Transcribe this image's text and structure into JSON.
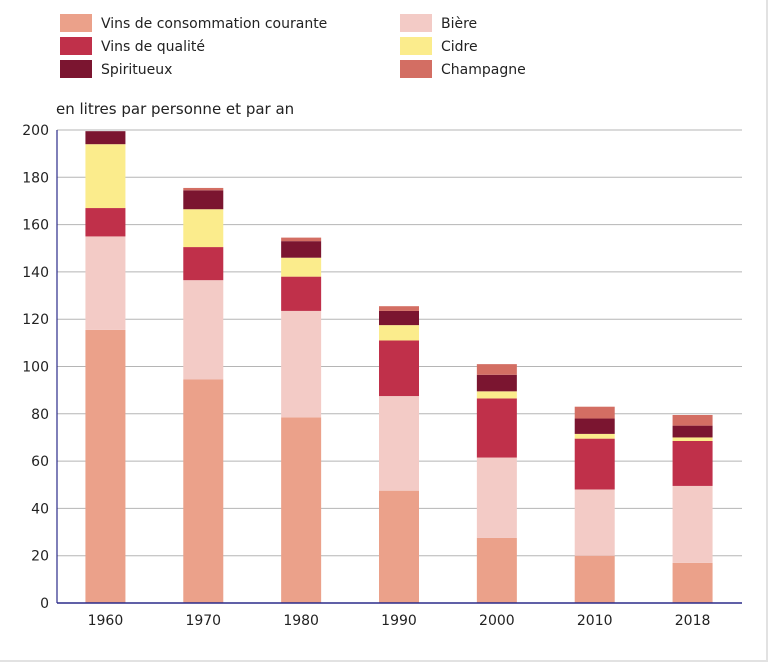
{
  "chart_data": {
    "type": "bar",
    "stacked": true,
    "ylabel": "en litres par personne et par an",
    "ylim": [
      0,
      200
    ],
    "yticks": [
      "0",
      "20",
      "40",
      "60",
      "80",
      "100",
      "120",
      "140",
      "160",
      "180",
      "200"
    ],
    "grid": true,
    "legend_position": "top",
    "categories": [
      "1960",
      "1970",
      "1980",
      "1990",
      "2000",
      "2010",
      "2018"
    ],
    "series": [
      {
        "name": "Vins de consommation courante",
        "color": "#eba18a",
        "values": [
          115.5,
          94.5,
          78.5,
          47.5,
          27.5,
          20,
          17
        ]
      },
      {
        "name": "Bière",
        "color": "#f3cbc6",
        "values": [
          39.5,
          42,
          45,
          40,
          34,
          28,
          32.5
        ]
      },
      {
        "name": "Vins de qualité",
        "color": "#c0304a",
        "values": [
          12,
          14,
          14.5,
          23.5,
          25,
          21.5,
          19
        ]
      },
      {
        "name": "Cidre",
        "color": "#fbec8c",
        "values": [
          27,
          16,
          8,
          6.5,
          3,
          2,
          1.5
        ]
      },
      {
        "name": "Spiritueux",
        "color": "#7b1530",
        "values": [
          5.5,
          8,
          7,
          6,
          7,
          6.5,
          5
        ]
      },
      {
        "name": "Champagne",
        "color": "#d36e63",
        "values": [
          0,
          1,
          1.5,
          2,
          4.5,
          5,
          4.5
        ]
      }
    ]
  }
}
